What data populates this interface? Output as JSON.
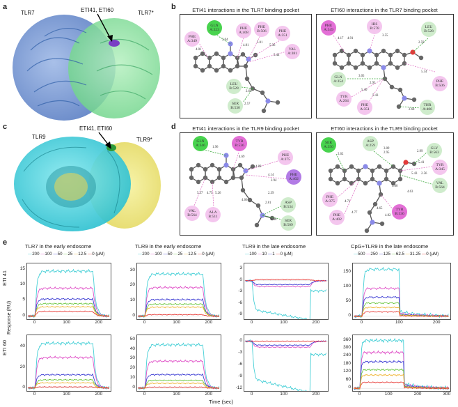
{
  "panel_a": {
    "letter": "a",
    "left_label": "TLR7",
    "right_label": "TLR7*",
    "ligand_label": "ETI41, ETI60"
  },
  "panel_b": {
    "letter": "b",
    "left_title": "ETI41 interactions in the TLR7 binding pocket",
    "right_title": "ETI60 interactions in the TLR7 binding pocket",
    "left_residues": [
      {
        "name": "GLN",
        "num": "A:323",
        "color": "bgreen"
      },
      {
        "name": "PHE",
        "num": "A:349",
        "color": "pink"
      },
      {
        "name": "PHE",
        "num": "A:408",
        "color": "pink"
      },
      {
        "name": "PHE",
        "num": "B:506",
        "color": "pink"
      },
      {
        "name": "PHE",
        "num": "A:351",
        "color": "pink"
      },
      {
        "name": "VAL",
        "num": "A:381",
        "color": "pink"
      },
      {
        "name": "LEU",
        "num": "B:528",
        "color": "green"
      },
      {
        "name": "SER",
        "num": "B:530",
        "color": "green"
      }
    ],
    "left_distances": [
      "2.04",
      "4.01",
      "4.81",
      "5.01",
      "5.36",
      "5.44",
      "2.64",
      "2.57"
    ],
    "right_residues": [
      {
        "name": "PHE",
        "num": "A:349",
        "color": "magenta"
      },
      {
        "name": "HIS",
        "num": "B:578",
        "color": "pink"
      },
      {
        "name": "LEU",
        "num": "B:528",
        "color": "green"
      },
      {
        "name": "GLN",
        "num": "A:354",
        "color": "green"
      },
      {
        "name": "PHE",
        "num": "B:506",
        "color": "pink"
      },
      {
        "name": "TYR",
        "num": "A:264",
        "color": "pink"
      },
      {
        "name": "PHE",
        "num": "A:351",
        "color": "pink"
      },
      {
        "name": "THR",
        "num": "A:406",
        "color": "green"
      }
    ],
    "right_distances": [
      "4.17",
      "4.91",
      "3.55",
      "2.59",
      "5.34",
      "3.05",
      "2.93",
      "5.40",
      "5.43",
      "2.68"
    ]
  },
  "panel_c": {
    "letter": "c",
    "left_label": "TLR9",
    "right_label": "TLR9*",
    "ligand_label": "ETI41, ETI60"
  },
  "panel_d": {
    "letter": "d",
    "left_title": "ETI41 interactions in the TLR9 binding pocket",
    "right_title": "ETI60 interactions in the TLR9 binding pocket",
    "left_residues": [
      {
        "name": "GLN",
        "num": "A:346",
        "color": "bgreen"
      },
      {
        "name": "TYR",
        "num": "B:536",
        "color": "magenta"
      },
      {
        "name": "PHE",
        "num": "A:375",
        "color": "pink"
      },
      {
        "name": "PHE",
        "num": "A:402",
        "color": "purple"
      },
      {
        "name": "ASP",
        "num": "B:534",
        "color": "green"
      },
      {
        "name": "SER",
        "num": "B:509",
        "color": "green"
      },
      {
        "name": "VAL",
        "num": "B:564",
        "color": "pink"
      },
      {
        "name": "ALA",
        "num": "B:511",
        "color": "pink"
      }
    ],
    "left_distances": [
      "1.96",
      "4.69",
      "4.89",
      "4.14",
      "2.94",
      "2.39",
      "2.81",
      "2.48",
      "5.37",
      "4.75",
      "5.26",
      "4.66"
    ],
    "right_residues": [
      {
        "name": "SER",
        "num": "A:350",
        "color": "bgreen"
      },
      {
        "name": "ASP",
        "num": "A:259",
        "color": "green"
      },
      {
        "name": "GLY",
        "num": "B:563",
        "color": "green"
      },
      {
        "name": "TYR",
        "num": "A:345",
        "color": "pink"
      },
      {
        "name": "VAL",
        "num": "B:564",
        "color": "green"
      },
      {
        "name": "PHE",
        "num": "A:375",
        "color": "pink"
      },
      {
        "name": "PHE",
        "num": "A:402",
        "color": "pink"
      },
      {
        "name": "TYR",
        "num": "B:536",
        "color": "magenta"
      }
    ],
    "right_distances": [
      "2.62",
      "3.09",
      "2.95",
      "2.99",
      "5.41",
      "5.43",
      "2.56",
      "5.00",
      "4.63",
      "4.71",
      "4.77",
      "4.65",
      "4.82"
    ]
  },
  "panel_e": {
    "letter": "e",
    "ylabel": "Response (RU)",
    "xlabel": "Time (sec)",
    "row_labels": [
      "ETI 41",
      "ETI 60"
    ]
  },
  "chart_data": [
    {
      "type": "line",
      "title": "TLR7 in the early endosome",
      "row": "ETI 41",
      "legend": [
        "200",
        "100",
        "50",
        "25",
        "12.5",
        "0 (μM)"
      ],
      "xticks": [
        "0",
        "100",
        "200"
      ],
      "yticks": [
        "0",
        "5",
        "10",
        "15"
      ],
      "ylim": [
        -1,
        17
      ],
      "xlim": [
        -25,
        235
      ],
      "series": [
        {
          "name": "200",
          "color": "#45cfd6",
          "plateau": 14.5
        },
        {
          "name": "100",
          "color": "#e052c8",
          "plateau": 9.0
        },
        {
          "name": "50",
          "color": "#3f3fd4",
          "plateau": 5.5
        },
        {
          "name": "25",
          "color": "#6bc73f",
          "plateau": 4.0
        },
        {
          "name": "12.5",
          "color": "#f0b637",
          "plateau": 3.0
        },
        {
          "name": "0",
          "color": "#e8403c",
          "plateau": 1.5
        }
      ]
    },
    {
      "type": "line",
      "title": "TLR9 in the early endosome",
      "row": "ETI 41",
      "legend": [
        "200",
        "100",
        "50",
        "25",
        "12.5",
        "0 (μM)"
      ],
      "xticks": [
        "0",
        "100",
        "200"
      ],
      "yticks": [
        "0",
        "10",
        "20",
        "30"
      ],
      "ylim": [
        -2,
        35
      ],
      "xlim": [
        -25,
        235
      ],
      "series": [
        {
          "name": "200",
          "color": "#45cfd6",
          "plateau": 28
        },
        {
          "name": "100",
          "color": "#e052c8",
          "plateau": 19
        },
        {
          "name": "50",
          "color": "#3f3fd4",
          "plateau": 11
        },
        {
          "name": "25",
          "color": "#6bc73f",
          "plateau": 8
        },
        {
          "name": "12.5",
          "color": "#f0b637",
          "plateau": 6
        },
        {
          "name": "0",
          "color": "#e8403c",
          "plateau": 1
        }
      ]
    },
    {
      "type": "line",
      "title": "TLR9 in the late endosome",
      "row": "ETI 41",
      "legend": [
        "100",
        "10",
        "1",
        "0 (μM)"
      ],
      "xticks": [
        "0",
        "100",
        "200"
      ],
      "yticks": [
        "-9",
        "-6",
        "-3",
        "0",
        "3"
      ],
      "ylim": [
        -10,
        4.5
      ],
      "xlim": [
        -25,
        235
      ],
      "series": [
        {
          "name": "100",
          "color": "#45cfd6",
          "plateau": -7.5
        },
        {
          "name": "10",
          "color": "#e052c8",
          "plateau": -1.5
        },
        {
          "name": "1",
          "color": "#3f3fd4",
          "plateau": -1.0
        },
        {
          "name": "0",
          "color": "#e8403c",
          "plateau": 0.3
        }
      ]
    },
    {
      "type": "line",
      "title": "CpG+TLR9 in the late endosome",
      "row": "ETI 41",
      "legend": [
        "500",
        "250",
        "125",
        "62.5",
        "31.25",
        "0 (μM)"
      ],
      "xticks": [
        "0",
        "100",
        "200"
      ],
      "yticks": [
        "0",
        "50",
        "100",
        "150"
      ],
      "ylim": [
        -10,
        180
      ],
      "xlim": [
        -25,
        235
      ],
      "series": [
        {
          "name": "500",
          "color": "#45cfd6",
          "plateau": 160
        },
        {
          "name": "250",
          "color": "#e052c8",
          "plateau": 95
        },
        {
          "name": "125",
          "color": "#3f3fd4",
          "plateau": 65
        },
        {
          "name": "62.5",
          "color": "#6bc73f",
          "plateau": 45
        },
        {
          "name": "31.25",
          "color": "#f0b637",
          "plateau": 30
        },
        {
          "name": "0",
          "color": "#e8403c",
          "plateau": 15
        }
      ]
    },
    {
      "type": "line",
      "title": "",
      "row": "ETI 60",
      "xticks": [
        "0",
        "100",
        "200"
      ],
      "yticks": [
        "0",
        "20",
        "40"
      ],
      "ylim": [
        -3,
        52
      ],
      "xlim": [
        -25,
        235
      ],
      "series": [
        {
          "name": "200",
          "color": "#45cfd6",
          "plateau": 44
        },
        {
          "name": "100",
          "color": "#e052c8",
          "plateau": 30
        },
        {
          "name": "50",
          "color": "#3f3fd4",
          "plateau": 13
        },
        {
          "name": "25",
          "color": "#6bc73f",
          "plateau": 8
        },
        {
          "name": "12.5",
          "color": "#f0b637",
          "plateau": 5
        },
        {
          "name": "0",
          "color": "#e8403c",
          "plateau": 1
        }
      ]
    },
    {
      "type": "line",
      "title": "",
      "row": "ETI 60",
      "xticks": [
        "0",
        "100",
        "200"
      ],
      "yticks": [
        "0",
        "10",
        "20",
        "30",
        "40",
        "50"
      ],
      "ylim": [
        -3,
        55
      ],
      "xlim": [
        -25,
        235
      ],
      "series": [
        {
          "name": "200",
          "color": "#45cfd6",
          "plateau": 45
        },
        {
          "name": "100",
          "color": "#e052c8",
          "plateau": 28
        },
        {
          "name": "50",
          "color": "#3f3fd4",
          "plateau": 14
        },
        {
          "name": "25",
          "color": "#6bc73f",
          "plateau": 8
        },
        {
          "name": "12.5",
          "color": "#f0b637",
          "plateau": 5
        },
        {
          "name": "0",
          "color": "#e8403c",
          "plateau": 1
        }
      ]
    },
    {
      "type": "line",
      "title": "",
      "row": "ETI 60",
      "xticks": [
        "0",
        "100",
        "200"
      ],
      "yticks": [
        "-12",
        "-9",
        "-6",
        "-3",
        "0"
      ],
      "ylim": [
        -12.5,
        1.5
      ],
      "xlim": [
        -25,
        235
      ],
      "series": [
        {
          "name": "100",
          "color": "#45cfd6",
          "plateau": -9.5
        },
        {
          "name": "10",
          "color": "#e052c8",
          "plateau": -1.5
        },
        {
          "name": "1",
          "color": "#3f3fd4",
          "plateau": -1.0
        },
        {
          "name": "0",
          "color": "#e8403c",
          "plateau": 0
        }
      ]
    },
    {
      "type": "line",
      "title": "",
      "row": "ETI 60",
      "xticks": [
        "0",
        "100",
        "200",
        "300"
      ],
      "yticks": [
        "0",
        "60",
        "120",
        "180",
        "240",
        "300",
        "360"
      ],
      "ylim": [
        -20,
        400
      ],
      "xlim": [
        -25,
        310
      ],
      "series": [
        {
          "name": "500",
          "color": "#45cfd6",
          "plateau": 360
        },
        {
          "name": "250",
          "color": "#e052c8",
          "plateau": 270
        },
        {
          "name": "125",
          "color": "#3f3fd4",
          "plateau": 200
        },
        {
          "name": "62.5",
          "color": "#6bc73f",
          "plateau": 140
        },
        {
          "name": "31.25",
          "color": "#f0b637",
          "plateau": 100
        },
        {
          "name": "0",
          "color": "#e8403c",
          "plateau": 45
        }
      ]
    }
  ]
}
